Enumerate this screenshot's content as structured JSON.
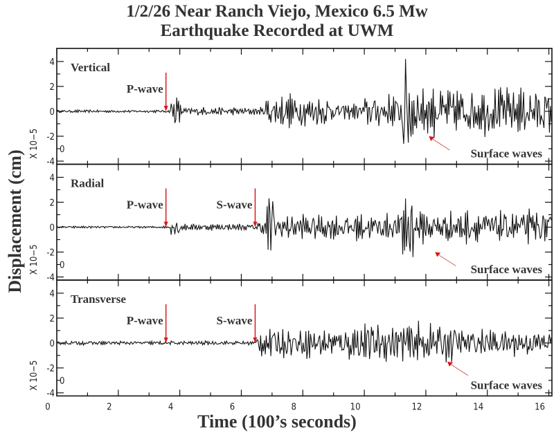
{
  "chart_data": {
    "type": "line",
    "title_lines": [
      "1/2/26 Near Ranch Viejo, Mexico 6.5 Mw",
      "Earthquake Recorded at UWM"
    ],
    "xlabel": "Time (100’s seconds)",
    "ylabel": "Displacement (cm)",
    "y_multiplier_label": "X 10−5",
    "y_offset_label": "0",
    "xlim": [
      0,
      16.1
    ],
    "ylim": [
      -4.25,
      5.05
    ],
    "x_ticks": [
      0,
      2,
      4,
      6,
      8,
      10,
      12,
      14,
      16
    ],
    "y_ticks": [
      -4,
      -2,
      0,
      2,
      4
    ],
    "grid": false,
    "trace_color": "#111111",
    "arrow_color": "#d7191c",
    "surface_arrow_color": "#e06060",
    "panels": [
      {
        "name": "Vertical",
        "envelope": [
          [
            0,
            3.7,
            0.1
          ],
          [
            3.7,
            4.0,
            1.2
          ],
          [
            4.0,
            6.8,
            0.3
          ],
          [
            6.8,
            9.0,
            1.2
          ],
          [
            9.0,
            10.0,
            0.6
          ],
          [
            10.0,
            11.2,
            1.3
          ],
          [
            11.2,
            11.6,
            4.5
          ],
          [
            11.6,
            16.1,
            1.8
          ]
        ],
        "annotations": [
          {
            "label": "P-wave",
            "x": 3.55,
            "type": "arrival"
          },
          {
            "label": "Surface waves",
            "x": 12.1,
            "y": -2.0,
            "type": "surface"
          }
        ]
      },
      {
        "name": "Radial",
        "envelope": [
          [
            0,
            3.7,
            0.08
          ],
          [
            3.7,
            4.1,
            0.7
          ],
          [
            4.1,
            6.5,
            0.25
          ],
          [
            6.5,
            6.8,
            0.6
          ],
          [
            6.8,
            7.1,
            2.8
          ],
          [
            7.1,
            11.2,
            1.0
          ],
          [
            11.2,
            11.6,
            4.0
          ],
          [
            11.6,
            16.1,
            1.2
          ]
        ],
        "annotations": [
          {
            "label": "P-wave",
            "x": 3.55,
            "type": "arrival"
          },
          {
            "label": "S-wave",
            "x": 6.45,
            "type": "arrival"
          },
          {
            "label": "Surface waves",
            "x": 12.3,
            "y": -2.0,
            "type": "surface"
          }
        ]
      },
      {
        "name": "Transverse",
        "envelope": [
          [
            0,
            6.5,
            0.15
          ],
          [
            6.5,
            9.5,
            1.1
          ],
          [
            9.5,
            13.0,
            1.5
          ],
          [
            13.0,
            16.1,
            1.0
          ]
        ],
        "annotations": [
          {
            "label": "P-wave",
            "x": 3.55,
            "type": "arrival"
          },
          {
            "label": "S-wave",
            "x": 6.45,
            "type": "arrival"
          },
          {
            "label": "Surface waves",
            "x": 12.7,
            "y": -1.5,
            "type": "surface"
          }
        ]
      }
    ]
  }
}
